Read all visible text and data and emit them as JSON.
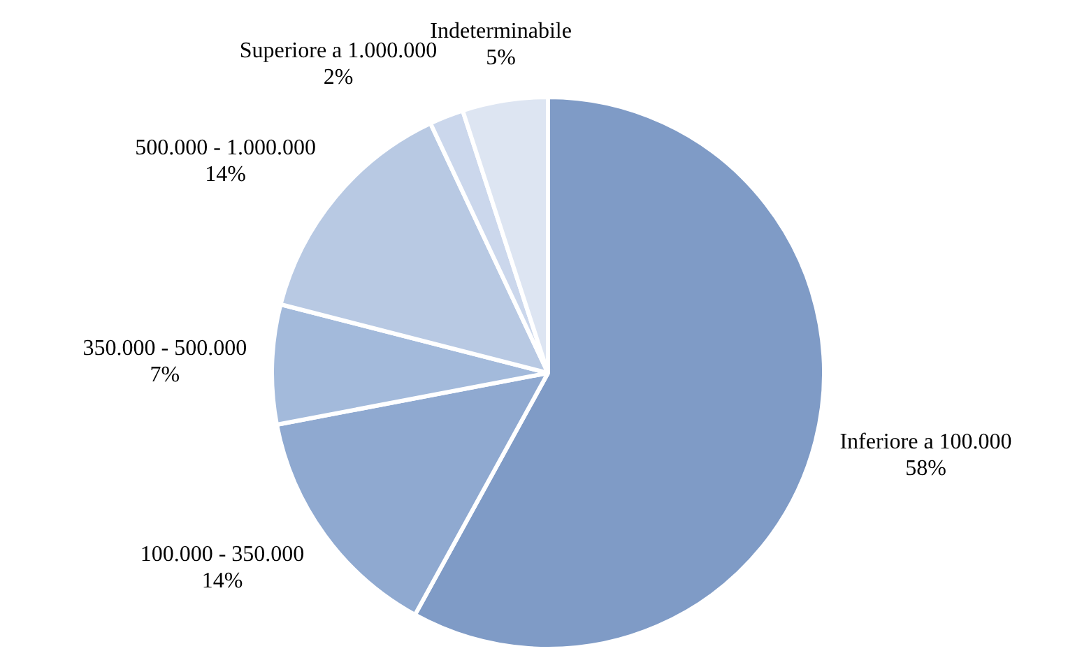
{
  "chart_data": {
    "type": "pie",
    "categories": [
      "Inferiore a 100.000",
      "100.000 - 350.000",
      "350.000 - 500.000",
      "500.000 - 1.000.000",
      "Superiore a 1.000.000",
      "Indeterminabile"
    ],
    "values": [
      58,
      14,
      7,
      14,
      2,
      5
    ],
    "value_labels": [
      "58%",
      "14%",
      "7%",
      "14%",
      "2%",
      "5%"
    ],
    "colors": [
      "#7f9bc6",
      "#8fa9d0",
      "#a3badb",
      "#b8c9e3",
      "#cbd7ec",
      "#dde5f2"
    ],
    "legend": false
  }
}
